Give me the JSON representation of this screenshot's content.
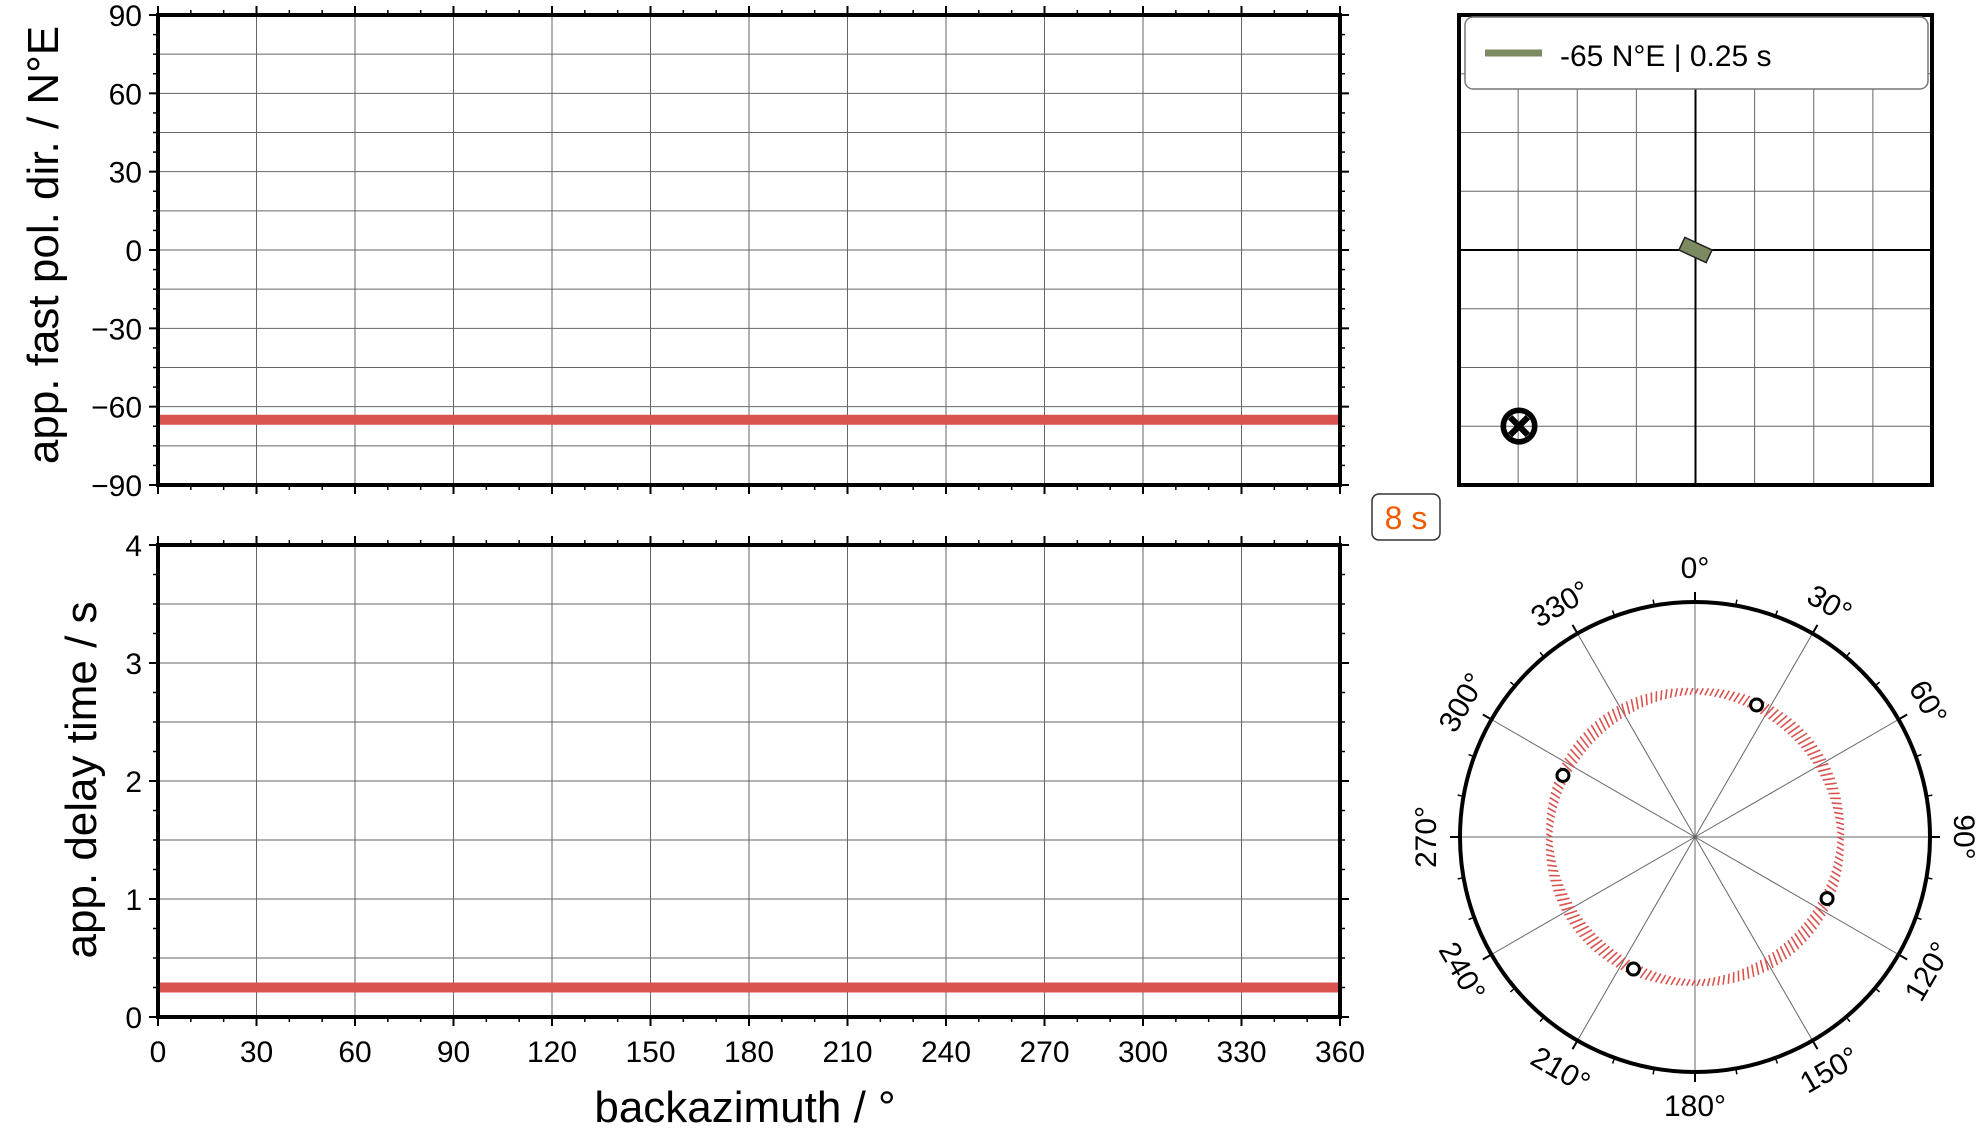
{
  "chart_data": [
    {
      "type": "line",
      "panel": "fast-polarization",
      "title": "",
      "xlabel": "",
      "ylabel": "app. fast pol. dir. / N°E",
      "xlim": [
        0,
        360
      ],
      "ylim": [
        -90,
        90
      ],
      "xticks": [
        0,
        30,
        60,
        90,
        120,
        150,
        180,
        210,
        240,
        270,
        300,
        330,
        360
      ],
      "yticks": [
        -90,
        -60,
        -30,
        0,
        30,
        60,
        90
      ],
      "ytick_labels": [
        "−90",
        "−60",
        "−30",
        "0",
        "30",
        "60",
        "90"
      ],
      "grid": true,
      "series": [
        {
          "x": [
            0,
            360
          ],
          "y": [
            -65,
            -65
          ],
          "color": "#d9534f"
        }
      ]
    },
    {
      "type": "line",
      "panel": "delay-time",
      "title": "",
      "xlabel": "backazimuth / °",
      "ylabel": "app. delay time / s",
      "xlim": [
        0,
        360
      ],
      "ylim": [
        0,
        4
      ],
      "xticks": [
        0,
        30,
        60,
        90,
        120,
        150,
        180,
        210,
        240,
        270,
        300,
        330,
        360
      ],
      "xtick_labels": [
        "0",
        "30",
        "60",
        "90",
        "120",
        "150",
        "180",
        "210",
        "240",
        "270",
        "300",
        "330",
        "360"
      ],
      "yticks": [
        0,
        1,
        2,
        3,
        4
      ],
      "ytick_labels": [
        "0",
        "1",
        "2",
        "3",
        "4"
      ],
      "grid": true,
      "series": [
        {
          "x": [
            0,
            360
          ],
          "y": [
            0.25,
            0.25
          ],
          "color": "#d9534f"
        }
      ]
    },
    {
      "type": "scatter",
      "panel": "splitting-model",
      "legend": {
        "placement": "top",
        "entries": [
          "-65 N°E | 0.25 s"
        ]
      },
      "model": {
        "phi_deg": -65,
        "dt_s": 0.25,
        "color": "#7c8a62"
      },
      "grid": true,
      "symbol": "⊗"
    },
    {
      "type": "scatter",
      "panel": "backazimuth-polar",
      "period_label": "8 s",
      "period_color": "#f05a00",
      "angle_ticks": [
        0,
        30,
        60,
        90,
        120,
        150,
        180,
        210,
        240,
        270,
        300,
        330
      ],
      "angle_labels": [
        "0°",
        "30°",
        "60°",
        "90°",
        "120°",
        "150°",
        "180°",
        "210°",
        "240°",
        "270°",
        "300°",
        "330°"
      ],
      "circle_color": "#d9534f",
      "circle_radius_fraction": 0.62,
      "stations_baz": [
        25,
        115,
        205,
        295
      ],
      "colors": {
        "line": "#d9534f",
        "model": "#7c8a62",
        "grid": "#666666"
      }
    }
  ]
}
